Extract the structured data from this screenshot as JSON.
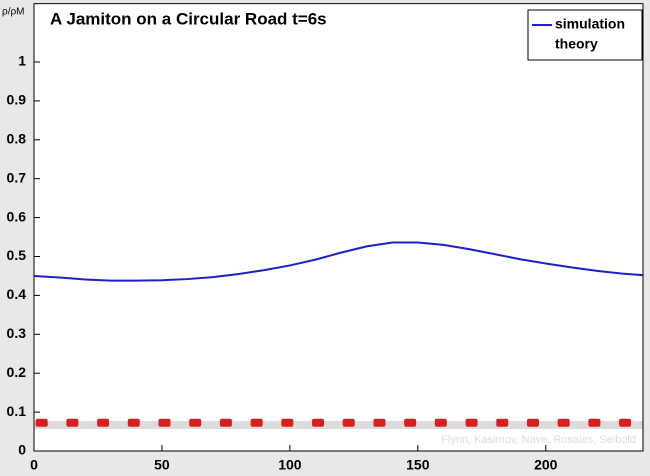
{
  "chart_data": {
    "type": "line",
    "title": "A  Jamiton on a Circular Road   t=6s",
    "ylabel": "ρ/ρM",
    "credit": "Flynn, Kasimov, Nave, Rosales, Seibold",
    "x": [
      0,
      10,
      20,
      30,
      40,
      50,
      60,
      70,
      80,
      90,
      100,
      110,
      120,
      130,
      140,
      150,
      160,
      170,
      180,
      190,
      200,
      210,
      220,
      230,
      238
    ],
    "series": [
      {
        "name": "simulation",
        "color": "#1f1fc8",
        "values": [
          0.45,
          0.446,
          0.441,
          0.438,
          0.438,
          0.439,
          0.442,
          0.447,
          0.455,
          0.465,
          0.477,
          0.492,
          0.51,
          0.526,
          0.536,
          0.536,
          0.53,
          0.519,
          0.506,
          0.493,
          0.482,
          0.472,
          0.463,
          0.456,
          0.452
        ]
      },
      {
        "name": "theory",
        "values": [
          null,
          null,
          null,
          null,
          null,
          null,
          null,
          null,
          null,
          null,
          null,
          null,
          null,
          null,
          null,
          null,
          null,
          null,
          null,
          null,
          null,
          null,
          null,
          null,
          null
        ]
      }
    ],
    "cars": {
      "color": "#d62020",
      "x": [
        3,
        15,
        27,
        39,
        51,
        63,
        75,
        87,
        99,
        111,
        123,
        135,
        147,
        159,
        171,
        183,
        195,
        207,
        219,
        231
      ],
      "values": [
        0.07,
        0.07,
        0.07,
        0.07,
        0.07,
        0.07,
        0.07,
        0.07,
        0.07,
        0.07,
        0.07,
        0.07,
        0.07,
        0.07,
        0.07,
        0.07,
        0.07,
        0.07,
        0.07,
        0.07
      ]
    },
    "xlim": [
      0,
      238
    ],
    "ylim": [
      0,
      1.15
    ],
    "xticks": [
      0,
      50,
      100,
      150,
      200
    ],
    "yticks": [
      0,
      0.1,
      0.2,
      0.3,
      0.4,
      0.5,
      0.6,
      0.7,
      0.8,
      0.9,
      1
    ],
    "legend": "upper right"
  }
}
